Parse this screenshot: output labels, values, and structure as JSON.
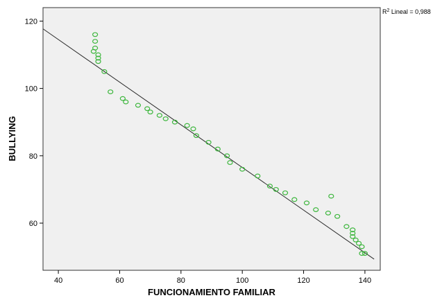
{
  "chart_data": {
    "type": "scatter",
    "xlabel": "FUNCIONAMIENTO FAMILIAR",
    "ylabel": "BULLYING",
    "xlim": [
      35,
      145
    ],
    "ylim": [
      46,
      124
    ],
    "xticks": [
      40,
      60,
      80,
      100,
      120,
      140
    ],
    "yticks": [
      60,
      80,
      100,
      120
    ],
    "grid": false,
    "background": "#f0f0f0",
    "marker_color": "#3cb63c",
    "fit_line_color": "#2a2a2a",
    "fit_line": {
      "x": [
        35,
        143
      ],
      "y": [
        117.7,
        49.3
      ]
    },
    "annotation": {
      "prefix": "R",
      "superscript": "2",
      "text": " Lineal = 0,988"
    },
    "points": [
      [
        52,
        116
      ],
      [
        52,
        114
      ],
      [
        52,
        112
      ],
      [
        51.5,
        111
      ],
      [
        53,
        110
      ],
      [
        53,
        109
      ],
      [
        53,
        108
      ],
      [
        55,
        105
      ],
      [
        57,
        99
      ],
      [
        61,
        97
      ],
      [
        62,
        96
      ],
      [
        66,
        95
      ],
      [
        69,
        94
      ],
      [
        70,
        93
      ],
      [
        73,
        92
      ],
      [
        75,
        91
      ],
      [
        78,
        90
      ],
      [
        82,
        89
      ],
      [
        84,
        88
      ],
      [
        85,
        86
      ],
      [
        89,
        84
      ],
      [
        92,
        82
      ],
      [
        95,
        80
      ],
      [
        96,
        78
      ],
      [
        100,
        76
      ],
      [
        105,
        74
      ],
      [
        109,
        71
      ],
      [
        111,
        70
      ],
      [
        114,
        69
      ],
      [
        117,
        67
      ],
      [
        121,
        66
      ],
      [
        124,
        64
      ],
      [
        128,
        63
      ],
      [
        129,
        68
      ],
      [
        131,
        62
      ],
      [
        134,
        59
      ],
      [
        136,
        58
      ],
      [
        136,
        57
      ],
      [
        136,
        56
      ],
      [
        137,
        55
      ],
      [
        138,
        54
      ],
      [
        139,
        53
      ],
      [
        139,
        51
      ],
      [
        140,
        51
      ]
    ]
  }
}
